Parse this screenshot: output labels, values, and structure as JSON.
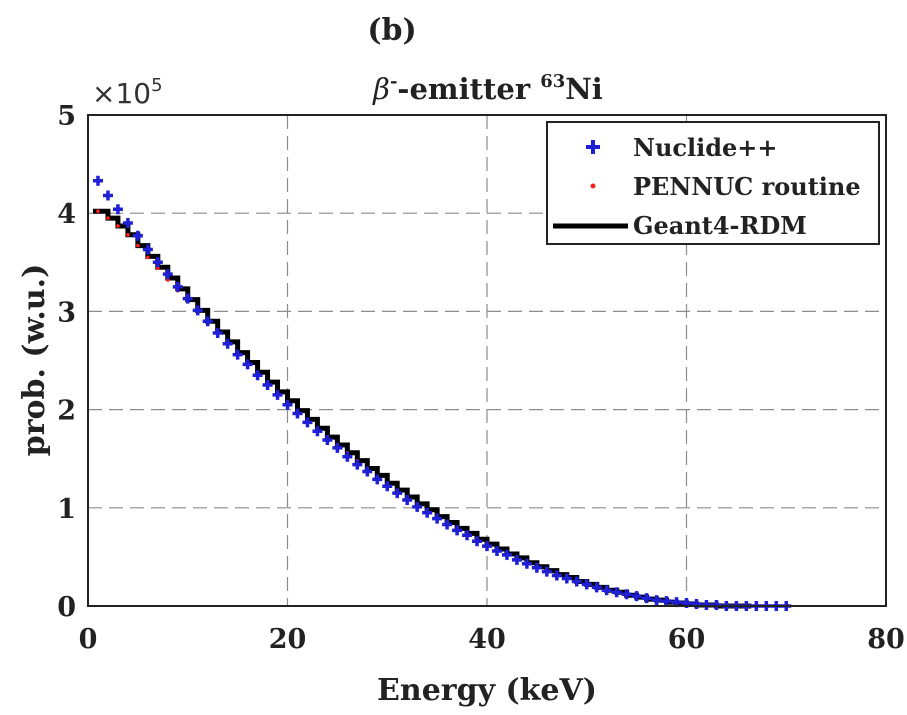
{
  "chart_data": {
    "type": "scatter",
    "panel_label": "(b)",
    "title_symbol": "β",
    "title_superscript_minus": "-",
    "title_text": "-emitter ",
    "title_mass_number": "63",
    "title_element": "Ni",
    "xlabel": "Energy (keV)",
    "ylabel": "prob. (w.u.)",
    "y_exponent_label": "×10",
    "y_exponent_power": "5",
    "xlim": [
      0,
      80
    ],
    "ylim": [
      0,
      5
    ],
    "x_ticks": [
      "0",
      "20",
      "40",
      "60",
      "80"
    ],
    "y_ticks": [
      "0",
      "1",
      "2",
      "3",
      "4",
      "5"
    ],
    "grid": true,
    "legend_position": "top-right",
    "series": [
      {
        "name": "Nuclide++",
        "marker": "plus",
        "color": "#1f1fd6",
        "x": [
          1,
          2,
          3,
          4,
          5,
          6,
          7,
          8,
          9,
          10,
          11,
          12,
          13,
          14,
          15,
          16,
          17,
          18,
          19,
          20,
          21,
          22,
          23,
          24,
          25,
          26,
          27,
          28,
          29,
          30,
          31,
          32,
          33,
          34,
          35,
          36,
          37,
          38,
          39,
          40,
          41,
          42,
          43,
          44,
          45,
          46,
          47,
          48,
          49,
          50,
          51,
          52,
          53,
          54,
          55,
          56,
          57,
          58,
          59,
          60,
          61,
          62,
          63,
          64,
          65,
          66,
          67,
          68,
          69,
          70
        ],
        "y": [
          4.33,
          4.18,
          4.04,
          3.9,
          3.77,
          3.63,
          3.5,
          3.38,
          3.25,
          3.13,
          3.01,
          2.9,
          2.78,
          2.67,
          2.56,
          2.46,
          2.35,
          2.25,
          2.15,
          2.05,
          1.96,
          1.87,
          1.78,
          1.69,
          1.61,
          1.52,
          1.44,
          1.37,
          1.29,
          1.22,
          1.15,
          1.08,
          1.01,
          0.95,
          0.89,
          0.83,
          0.77,
          0.72,
          0.66,
          0.61,
          0.56,
          0.52,
          0.47,
          0.43,
          0.39,
          0.35,
          0.31,
          0.28,
          0.25,
          0.22,
          0.19,
          0.16,
          0.14,
          0.12,
          0.1,
          0.08,
          0.06,
          0.05,
          0.04,
          0.03,
          0.02,
          0.01,
          0.01,
          0.0,
          0.0,
          0.0,
          0.0,
          0.0,
          0.0,
          0.0
        ]
      },
      {
        "name": "PENNUC routine",
        "marker": "dot",
        "color": "#ff2020",
        "x": [
          1,
          2,
          3,
          4,
          5,
          6,
          7,
          8,
          9,
          10,
          11,
          12,
          13,
          14,
          15,
          16,
          17,
          18,
          19,
          20,
          21,
          22,
          23,
          24,
          25,
          26,
          27,
          28,
          29,
          30,
          31,
          32,
          33,
          34,
          35,
          36,
          37,
          38,
          39,
          40,
          41,
          42,
          43,
          44,
          45,
          46,
          47,
          48,
          49,
          50,
          51,
          52,
          53,
          54,
          55,
          56,
          57,
          58,
          59,
          60,
          61,
          62,
          63,
          64,
          65
        ],
        "y": [
          4.02,
          3.95,
          3.87,
          3.78,
          3.67,
          3.55,
          3.44,
          3.32,
          3.21,
          3.1,
          2.99,
          2.88,
          2.77,
          2.67,
          2.57,
          2.47,
          2.37,
          2.27,
          2.17,
          2.08,
          1.99,
          1.9,
          1.81,
          1.72,
          1.64,
          1.56,
          1.48,
          1.4,
          1.32,
          1.25,
          1.18,
          1.11,
          1.04,
          0.98,
          0.91,
          0.85,
          0.79,
          0.74,
          0.68,
          0.63,
          0.58,
          0.53,
          0.49,
          0.44,
          0.4,
          0.36,
          0.32,
          0.29,
          0.25,
          0.22,
          0.19,
          0.16,
          0.14,
          0.11,
          0.09,
          0.07,
          0.06,
          0.04,
          0.03,
          0.02,
          0.01,
          0.01,
          0.0,
          0.0,
          0.0
        ]
      },
      {
        "name": "Geant4-RDM",
        "marker": "step",
        "color": "#000000",
        "x": [
          0.5,
          1,
          2,
          3,
          4,
          5,
          6,
          7,
          8,
          9,
          10,
          11,
          12,
          13,
          14,
          15,
          16,
          17,
          18,
          19,
          20,
          21,
          22,
          23,
          24,
          25,
          26,
          27,
          28,
          29,
          30,
          31,
          32,
          33,
          34,
          35,
          36,
          37,
          38,
          39,
          40,
          41,
          42,
          43,
          44,
          45,
          46,
          47,
          48,
          49,
          50,
          51,
          52,
          53,
          54,
          55,
          56,
          57,
          58,
          59,
          60,
          61,
          62,
          63,
          64,
          65,
          66
        ],
        "y": [
          4.02,
          4.02,
          3.95,
          3.87,
          3.78,
          3.67,
          3.56,
          3.45,
          3.34,
          3.23,
          3.12,
          3.01,
          2.9,
          2.79,
          2.69,
          2.58,
          2.48,
          2.38,
          2.28,
          2.18,
          2.09,
          1.99,
          1.9,
          1.81,
          1.72,
          1.64,
          1.56,
          1.48,
          1.4,
          1.33,
          1.25,
          1.18,
          1.11,
          1.04,
          0.98,
          0.91,
          0.85,
          0.79,
          0.74,
          0.68,
          0.63,
          0.58,
          0.53,
          0.49,
          0.44,
          0.4,
          0.36,
          0.32,
          0.29,
          0.25,
          0.22,
          0.19,
          0.16,
          0.14,
          0.11,
          0.09,
          0.07,
          0.06,
          0.04,
          0.03,
          0.02,
          0.01,
          0.01,
          0.0,
          0.0,
          0.0,
          0.0
        ]
      }
    ]
  }
}
